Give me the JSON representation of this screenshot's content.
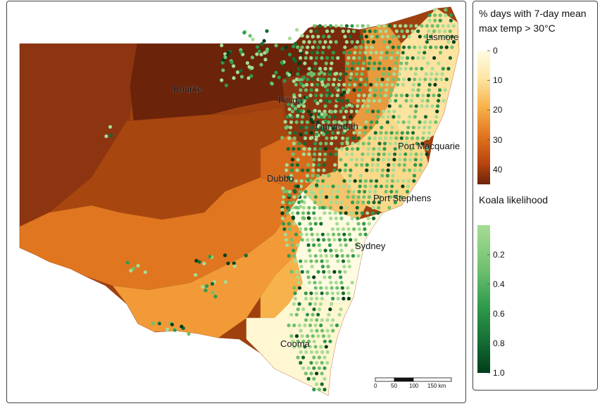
{
  "legend": {
    "temp_title_line1": "% days with 7-day mean",
    "temp_title_line2": "max temp > 30°C",
    "temp_ticks": [
      "0",
      "10",
      "20",
      "30",
      "40"
    ],
    "temp_tick_values": [
      0,
      10,
      20,
      30,
      40
    ],
    "temp_range": [
      0,
      45
    ],
    "temp_colors": [
      "#fffbe3",
      "#fde7a6",
      "#f7b24b",
      "#e27420",
      "#b8460f",
      "#6b230a"
    ],
    "koala_title": "Koala likelihood",
    "koala_ticks": [
      "0.2",
      "0.4",
      "0.6",
      "0.8",
      "1.0"
    ],
    "koala_tick_values": [
      0.2,
      0.4,
      0.6,
      0.8,
      1.0
    ],
    "koala_range": [
      0.0,
      1.0
    ],
    "koala_colors": [
      "#a6dc95",
      "#6fc06e",
      "#2f9a4c",
      "#136b32",
      "#003d1a"
    ]
  },
  "places": {
    "bourke": "Bourke",
    "pilliga": "Pilliga",
    "gunnedah": "Gunnedah",
    "lismore": "Lismore",
    "port_macquarie": "Port Macquarie",
    "dubbo": "Dubbo",
    "port_stephens": "Port Stephens",
    "sydney": "Sydney",
    "cooma": "Cooma"
  },
  "scale_bar": {
    "labels": [
      "0",
      "50",
      "100",
      "150 km"
    ]
  }
}
